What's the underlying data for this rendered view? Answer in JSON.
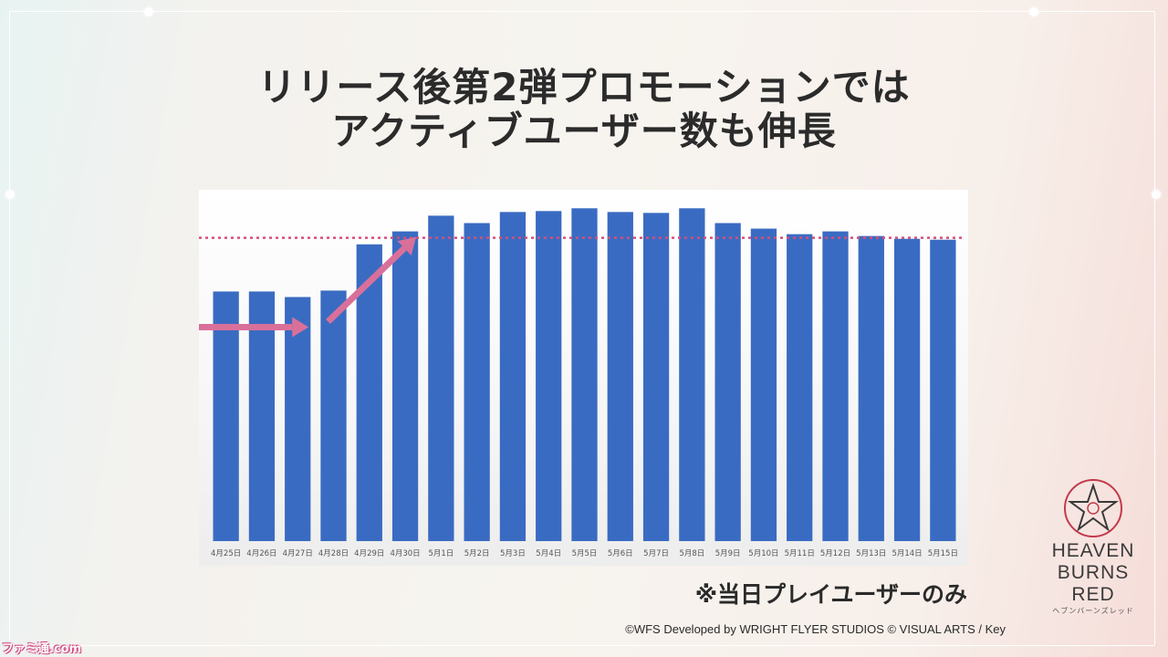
{
  "slide": {
    "title_line1": "リリース後第2弾プロモーションでは",
    "title_line2": "アクティブユーザー数も伸長",
    "note": "※当日プレイユーザーのみ",
    "copyright": "©WFS Developed by WRIGHT FLYER STUDIOS © VISUAL ARTS / Key"
  },
  "logo": {
    "line1": "HEAVEN",
    "line2": "BURNS",
    "line3": "RED",
    "subtitle": "ヘブンバーンズレッド",
    "icon": "star-emblem-icon"
  },
  "watermark": {
    "text": "ファミ通.com"
  },
  "colors": {
    "bar": "#3a6bc2",
    "reference_line": "#d44f79",
    "arrow": "#d9709a"
  },
  "chart_data": {
    "type": "bar",
    "categories": [
      "4月25日",
      "4月26日",
      "4月27日",
      "4月28日",
      "4月29日",
      "4月30日",
      "5月1日",
      "5月2日",
      "5月3日",
      "5月4日",
      "5月5日",
      "5月6日",
      "5月7日",
      "5月8日",
      "5月9日",
      "5月10日",
      "5月11日",
      "5月12日",
      "5月13日",
      "5月14日",
      "5月15日"
    ],
    "values": [
      270,
      270,
      264,
      271,
      321,
      335,
      352,
      344,
      356,
      357,
      360,
      356,
      355,
      360,
      344,
      338,
      332,
      335,
      330,
      327,
      326
    ],
    "ylim": [
      0,
      380
    ],
    "reference_line": 328,
    "title": "",
    "xlabel": "",
    "ylabel": "",
    "grid": false,
    "annotations": [
      "flat arrow 4月25日→4月27日",
      "rising arrow 4月28日→4月30日"
    ]
  }
}
